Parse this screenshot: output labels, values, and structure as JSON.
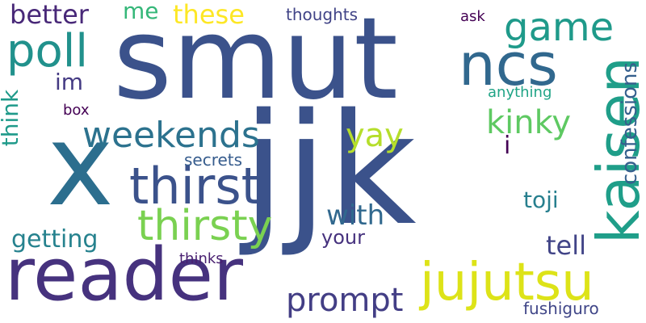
{
  "word_cloud": {
    "words": {
      "smut": "smut",
      "jjk": "jjk",
      "x": "x",
      "reader": "reader",
      "thirst": "thirst",
      "thirsty": "thirsty",
      "weekends": "weekends",
      "poll": "poll",
      "ncs": "ncs",
      "kaisen": "kaisen",
      "confessions": "confessions",
      "jujutsu": "jujutsu",
      "prompt": "prompt",
      "game": "game",
      "kinky": "kinky",
      "yay": "yay",
      "better": "better",
      "these": "these",
      "me": "me",
      "thoughts": "thoughts",
      "ask": "ask",
      "im": "im",
      "box": "box",
      "anything": "anything",
      "secrets": "secrets",
      "think": "think",
      "i": "i",
      "toji": "toji",
      "with": "with",
      "your": "your",
      "tell": "tell",
      "getting": "getting",
      "thinks": "thinks",
      "fushiguro": "fushiguro"
    },
    "palette": {
      "dark_purple": "#440154",
      "purple": "#46327e",
      "indigo": "#3b528b",
      "blue": "#31688e",
      "teal": "#21918c",
      "green": "#35b779",
      "lime": "#7ad151",
      "yellow": "#fde725"
    }
  }
}
